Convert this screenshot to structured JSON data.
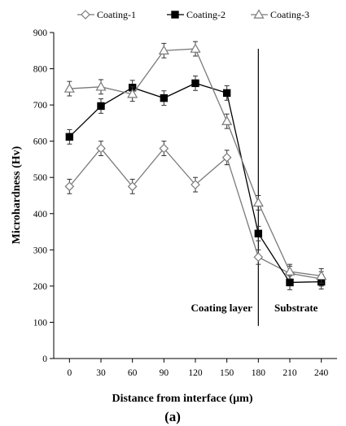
{
  "chart_data": {
    "type": "line",
    "panel_label": "(a)",
    "xlabel": "Distance from interface (µm)",
    "ylabel": "Microhardness (Hv)",
    "x": [
      0,
      30,
      60,
      90,
      120,
      150,
      180,
      210,
      240
    ],
    "xlim": [
      -15,
      255
    ],
    "ylim": [
      0,
      900
    ],
    "x_ticks": [
      0,
      30,
      60,
      90,
      120,
      150,
      180,
      210,
      240
    ],
    "y_ticks": [
      0,
      100,
      200,
      300,
      400,
      500,
      600,
      700,
      800,
      900
    ],
    "grid": false,
    "legend_position": "top",
    "series": [
      {
        "name": "Coating-1",
        "marker": "open-diamond",
        "color": "#7a7a7a",
        "values": [
          475,
          580,
          475,
          580,
          480,
          555,
          280,
          235,
          220
        ],
        "errors": [
          20,
          20,
          20,
          20,
          20,
          20,
          20,
          20,
          20
        ]
      },
      {
        "name": "Coating-2",
        "marker": "filled-square",
        "color": "#000000",
        "values": [
          612,
          697,
          748,
          719,
          760,
          733,
          345,
          210,
          212
        ],
        "errors": [
          20,
          20,
          20,
          20,
          20,
          20,
          20,
          20,
          20
        ]
      },
      {
        "name": "Coating-3",
        "marker": "open-triangle",
        "color": "#7a7a7a",
        "values": [
          745,
          750,
          730,
          850,
          855,
          655,
          430,
          240,
          228
        ],
        "errors": [
          20,
          20,
          20,
          20,
          20,
          20,
          20,
          20,
          20
        ]
      }
    ],
    "divider_x": 180,
    "annotations": [
      {
        "text": "Coating layer",
        "x": 145,
        "y": 130
      },
      {
        "text": "Substrate",
        "x": 216,
        "y": 130
      }
    ]
  }
}
